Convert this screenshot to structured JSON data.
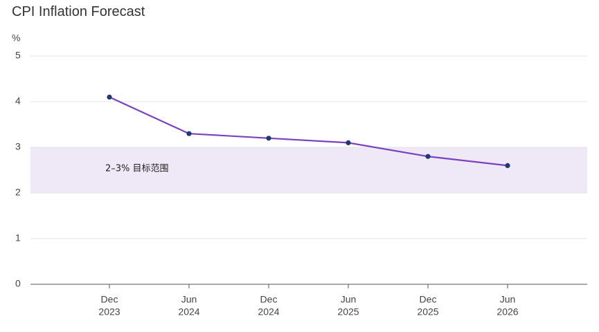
{
  "chart_data": {
    "type": "line",
    "title": "CPI Inflation Forecast",
    "ylabel": "%",
    "ylim": [
      0,
      5
    ],
    "yticks": [
      0,
      1,
      2,
      3,
      4,
      5
    ],
    "grid": true,
    "categories": [
      {
        "month": "Dec",
        "year": "2023"
      },
      {
        "month": "Jun",
        "year": "2024"
      },
      {
        "month": "Dec",
        "year": "2024"
      },
      {
        "month": "Jun",
        "year": "2025"
      },
      {
        "month": "Dec",
        "year": "2025"
      },
      {
        "month": "Jun",
        "year": "2026"
      }
    ],
    "series": [
      {
        "values": [
          4.1,
          3.3,
          3.2,
          3.1,
          2.8,
          2.6
        ],
        "color": "#7b3fbf",
        "marker_color": "#1f3a73"
      }
    ],
    "target_band": {
      "from": 2,
      "to": 3,
      "label": "2–3% 目标范围",
      "color": "#efe8f7"
    }
  }
}
